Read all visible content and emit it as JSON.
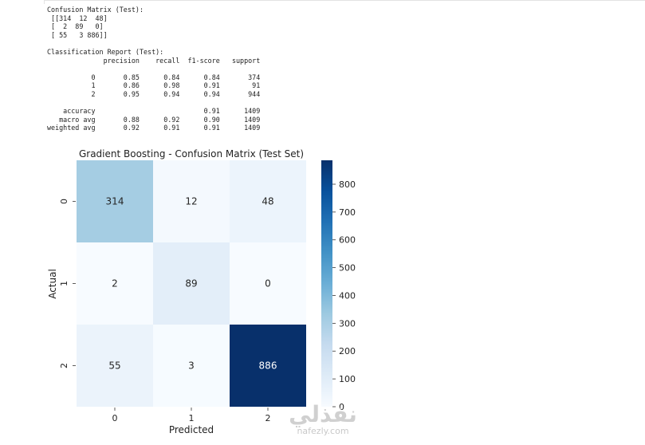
{
  "console": {
    "text": "Confusion Matrix (Test):\n [[314  12  48]\n [  2  89   0]\n [ 55   3 886]]\n\nClassification Report (Test):\n              precision    recall  f1-score   support\n\n           0       0.85      0.84      0.84       374\n           1       0.86      0.98      0.91        91\n           2       0.95      0.94      0.94       944\n\n    accuracy                           0.91      1409\n   macro avg       0.88      0.92      0.90      1409\nweighted avg       0.92      0.91      0.91      1409"
  },
  "chart_data": {
    "type": "heatmap",
    "title": "Gradient Boosting - Confusion Matrix (Test Set)",
    "xlabel": "Predicted",
    "ylabel": "Actual",
    "x_categories": [
      "0",
      "1",
      "2"
    ],
    "y_categories": [
      "0",
      "1",
      "2"
    ],
    "values": [
      [
        314,
        12,
        48
      ],
      [
        2,
        89,
        0
      ],
      [
        55,
        3,
        886
      ]
    ],
    "colormap": "Blues",
    "colorbar": {
      "min": 0,
      "max": 886,
      "ticks": [
        0,
        100,
        200,
        300,
        400,
        500,
        600,
        700,
        800
      ]
    },
    "low_color": "#f7fbff",
    "high_color": "#08306b"
  },
  "watermark": {
    "logo": "نفذلي",
    "sub": "nafezly.com"
  }
}
